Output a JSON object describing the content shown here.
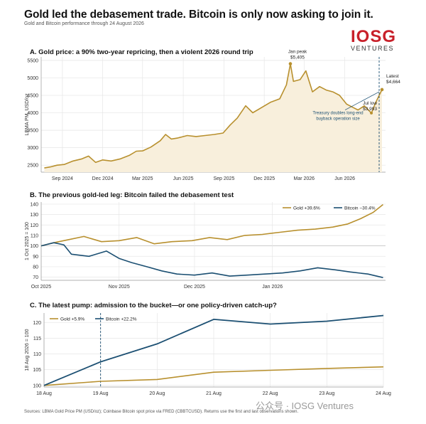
{
  "header": {
    "title": "Gold led the debasement trade. Bitcoin is only now asking to join it.",
    "subtitle": "Gold and Bitcoin performance through 24 August 2026"
  },
  "logo": {
    "mark": "IOSG",
    "sub": "VENTURES"
  },
  "footer": "Sources: LBMA Gold Price PM (USD/oz); Coinbase Bitcoin spot price via FRED (CBBTCUSD). Returns use the first and last observations shown.",
  "watermark": "公众号 · IOSG Ventures",
  "colors": {
    "gold": "#b8902e",
    "bitcoin": "#1b4f72",
    "fill": "#f8efdc",
    "grid": "#e6e6e6"
  },
  "chart_data": [
    {
      "type": "area",
      "title": "A. Gold price: a 90% two-year repricing, then a violent 2026 round trip",
      "ylabel": "LBMA PM, USD/oz",
      "xlim": [
        "2024-07-15",
        "2026-09-01"
      ],
      "ylim": [
        2300,
        5600
      ],
      "yticks": [
        2500,
        3000,
        3500,
        4000,
        4500,
        5000,
        5500
      ],
      "xticks": [
        {
          "label": "Sep 2024",
          "date": "2024-09-01"
        },
        {
          "label": "Dec 2024",
          "date": "2024-12-01"
        },
        {
          "label": "Mar 2025",
          "date": "2025-03-01"
        },
        {
          "label": "Jun 2025",
          "date": "2025-06-01"
        },
        {
          "label": "Sep 2025",
          "date": "2025-09-01"
        },
        {
          "label": "Dec 2025",
          "date": "2025-12-01"
        },
        {
          "label": "Mar 2026",
          "date": "2026-03-01"
        },
        {
          "label": "Jun 2026",
          "date": "2026-06-01"
        }
      ],
      "series": [
        {
          "x": [
            "2024-07-22",
            "2024-08-05",
            "2024-08-20",
            "2024-09-05",
            "2024-09-25",
            "2024-10-15",
            "2024-10-30",
            "2024-11-15",
            "2024-12-01",
            "2024-12-20",
            "2025-01-10",
            "2025-01-30",
            "2025-02-15",
            "2025-03-01",
            "2025-03-20",
            "2025-04-10",
            "2025-04-22",
            "2025-05-05",
            "2025-05-20",
            "2025-06-10",
            "2025-06-30",
            "2025-07-20",
            "2025-08-10",
            "2025-08-30",
            "2025-09-15",
            "2025-10-01",
            "2025-10-20",
            "2025-11-05",
            "2025-11-25",
            "2025-12-15",
            "2026-01-05",
            "2026-01-20",
            "2026-01-29",
            "2026-02-05",
            "2026-02-20",
            "2026-03-05",
            "2026-03-20",
            "2026-04-05",
            "2026-04-20",
            "2026-05-05",
            "2026-05-20",
            "2026-06-05",
            "2026-06-20",
            "2026-07-01",
            "2026-07-15",
            "2026-07-31",
            "2026-08-10",
            "2026-08-24"
          ],
          "values": [
            2420,
            2450,
            2500,
            2520,
            2620,
            2680,
            2760,
            2580,
            2650,
            2620,
            2680,
            2780,
            2900,
            2910,
            3020,
            3200,
            3380,
            3250,
            3280,
            3350,
            3320,
            3350,
            3380,
            3420,
            3650,
            3850,
            4200,
            4000,
            4150,
            4300,
            4400,
            4800,
            5405,
            4900,
            4950,
            5200,
            4600,
            4750,
            4650,
            4600,
            4500,
            4250,
            4150,
            4080,
            4200,
            3993,
            4300,
            4664
          ]
        }
      ],
      "annotations": [
        {
          "label": "Jan peak",
          "value": "$5,405",
          "x": "2026-01-29",
          "y": 5405
        },
        {
          "label": "Jul low",
          "value": "$3,993",
          "x": "2026-07-31",
          "y": 3993
        },
        {
          "label": "Latest",
          "value": "$4,664",
          "x": "2026-08-24",
          "y": 4664
        },
        {
          "label": "Treasury doubles long-end",
          "label2": "buyback operation size",
          "x": "2026-08-24"
        }
      ]
    },
    {
      "type": "line",
      "title": "B. The previous gold-led leg: Bitcoin failed the debasement test",
      "ylabel": "1 Oct 2025 = 100",
      "xlim": [
        "2025-10-01",
        "2026-02-15"
      ],
      "ylim": [
        67,
        142
      ],
      "yticks": [
        70,
        80,
        90,
        100,
        110,
        120,
        130,
        140
      ],
      "xticks": [
        {
          "label": "Oct 2025",
          "date": "2025-10-01"
        },
        {
          "label": "Nov 2025",
          "date": "2025-11-01"
        },
        {
          "label": "Dec 2025",
          "date": "2025-12-01"
        },
        {
          "label": "Jan 2026",
          "date": "2026-01-01"
        }
      ],
      "series": [
        {
          "name": "Gold +39.6%",
          "color": "gold",
          "x": [
            "2025-10-01",
            "2025-10-06",
            "2025-10-12",
            "2025-10-18",
            "2025-10-25",
            "2025-11-01",
            "2025-11-08",
            "2025-11-15",
            "2025-11-22",
            "2025-11-30",
            "2025-12-07",
            "2025-12-14",
            "2025-12-21",
            "2025-12-28",
            "2026-01-04",
            "2026-01-11",
            "2026-01-18",
            "2026-01-25",
            "2026-01-31",
            "2026-02-05",
            "2026-02-10",
            "2026-02-14"
          ],
          "values": [
            100,
            103,
            106,
            109,
            104,
            105,
            108,
            102,
            104,
            105,
            108,
            106,
            110,
            111,
            113,
            115,
            116,
            118,
            121,
            126,
            132,
            139.6
          ]
        },
        {
          "name": "Bitcoin −30.4%",
          "color": "bitcoin",
          "x": [
            "2025-10-01",
            "2025-10-06",
            "2025-10-10",
            "2025-10-13",
            "2025-10-20",
            "2025-10-27",
            "2025-11-01",
            "2025-11-06",
            "2025-11-12",
            "2025-11-18",
            "2025-11-24",
            "2025-12-01",
            "2025-12-08",
            "2025-12-15",
            "2025-12-22",
            "2025-12-29",
            "2026-01-05",
            "2026-01-12",
            "2026-01-19",
            "2026-01-26",
            "2026-02-01",
            "2026-02-08",
            "2026-02-14"
          ],
          "values": [
            100,
            103,
            101,
            92,
            90,
            95,
            88,
            84,
            80,
            76,
            73,
            72,
            74,
            71,
            72,
            73,
            74,
            76,
            79,
            77,
            75,
            73,
            69.6
          ]
        }
      ],
      "legend": "top-right"
    },
    {
      "type": "line",
      "title": "C. The latest pump: admission to the bucket—or one policy-driven catch-up?",
      "ylabel": "18 Aug 2026 = 100",
      "categories": [
        "18 Aug",
        "19 Aug",
        "20 Aug",
        "21 Aug",
        "22 Aug",
        "23 Aug",
        "24 Aug"
      ],
      "ylim": [
        99.5,
        123
      ],
      "yticks": [
        100,
        105,
        110,
        115,
        120
      ],
      "series": [
        {
          "name": "Gold +5.9%",
          "color": "gold",
          "values": [
            100,
            101.3,
            101.9,
            104.2,
            104.8,
            105.4,
            105.9
          ]
        },
        {
          "name": "Bitcoin +22.2%",
          "color": "bitcoin",
          "values": [
            100,
            107.5,
            113.2,
            121,
            119.5,
            120.4,
            122.2
          ]
        }
      ],
      "marker_category": "19 Aug",
      "legend": "top-left"
    }
  ]
}
